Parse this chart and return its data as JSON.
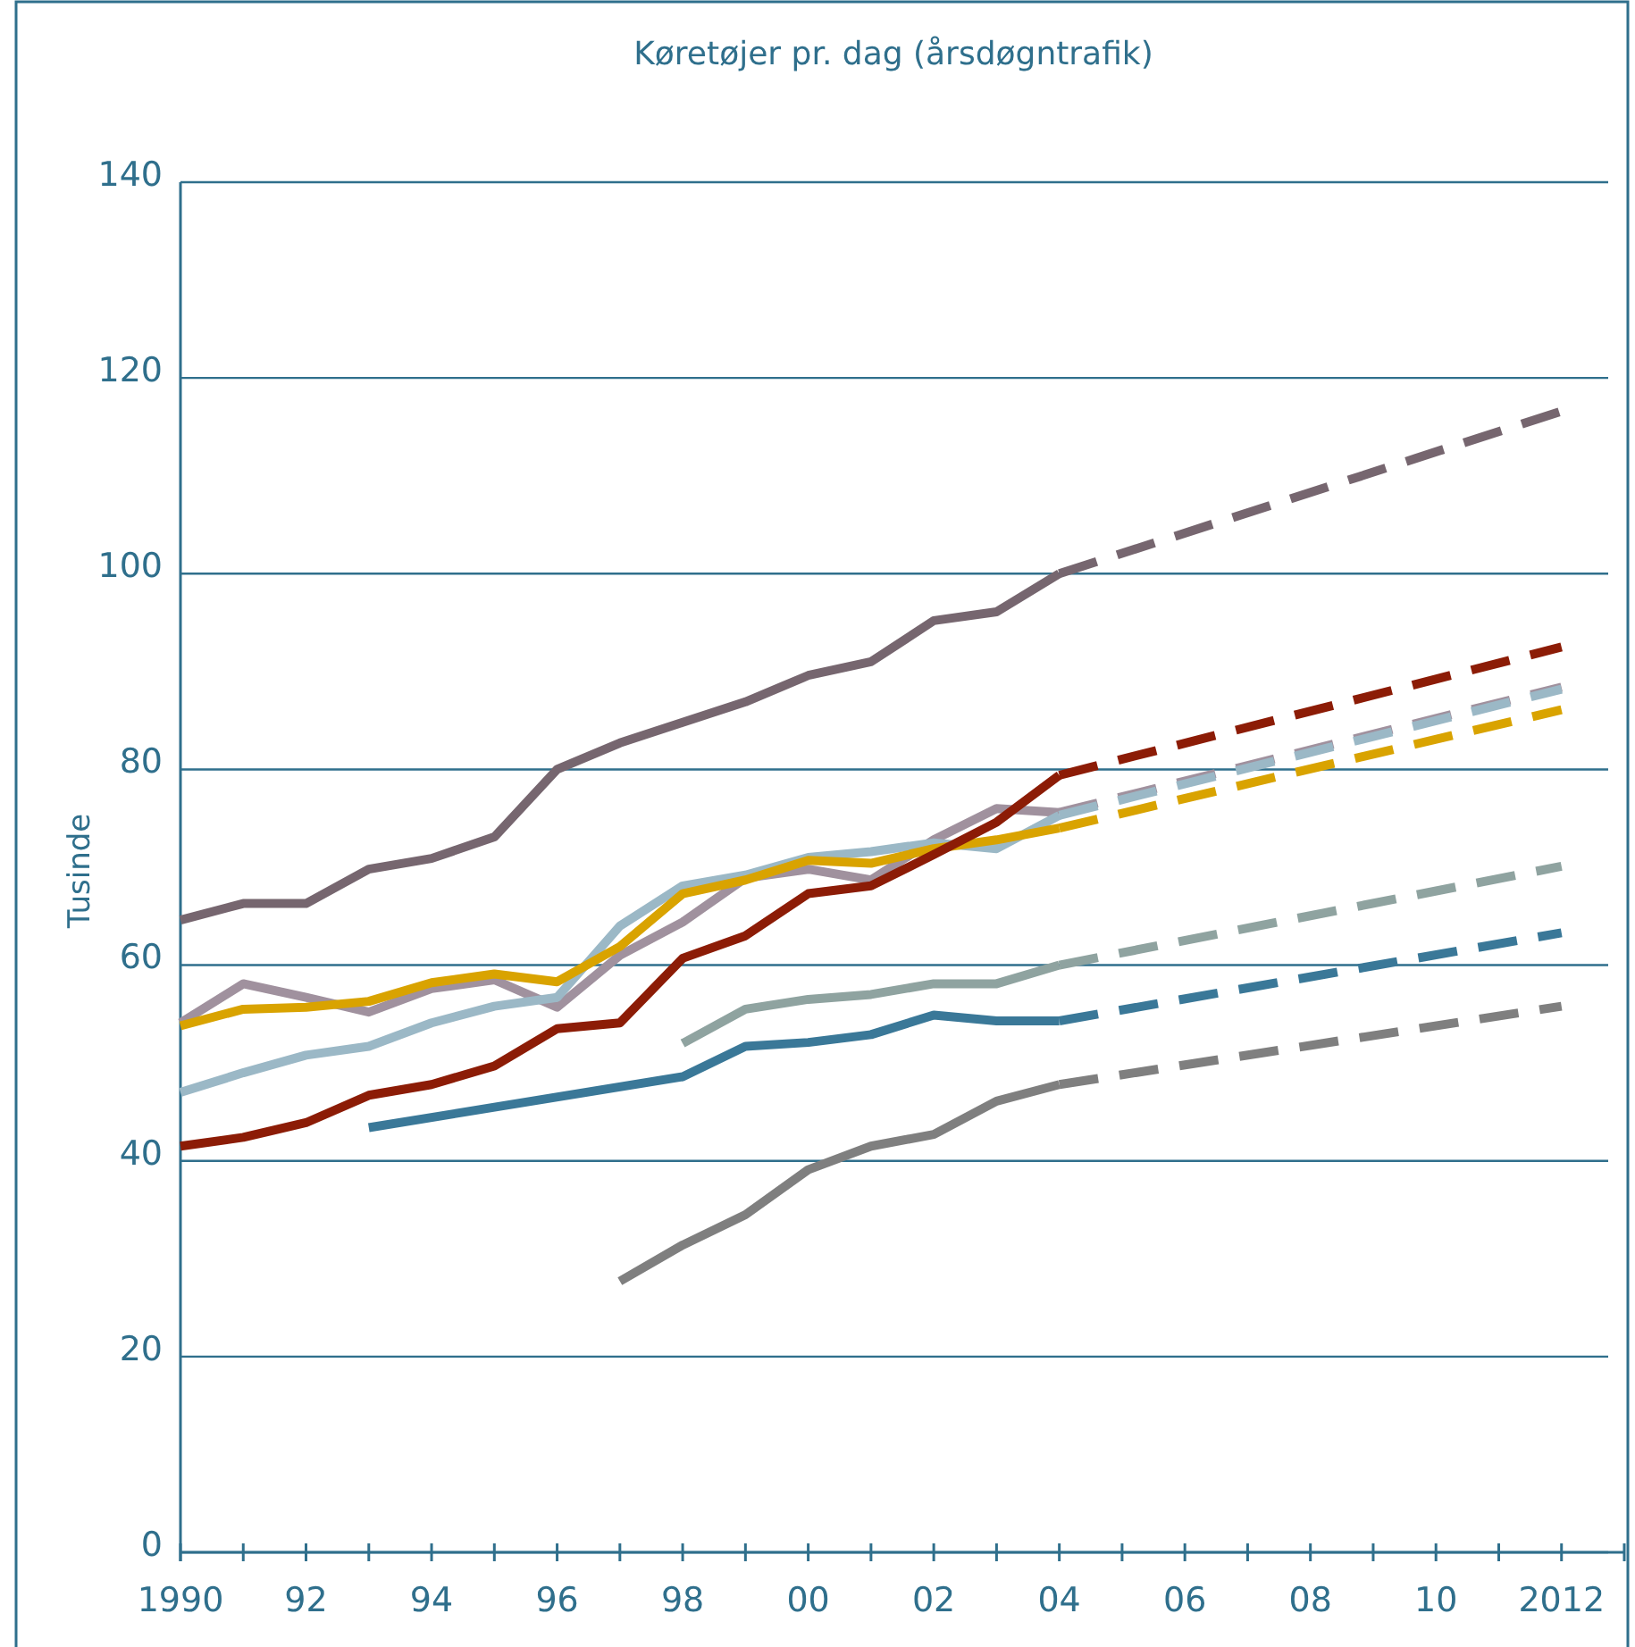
{
  "chart_data": {
    "type": "line",
    "title": "Køretøjer pr. dag (årsdøgntrafik)",
    "ylabel": "Tusinde",
    "xlim": [
      1990,
      2013
    ],
    "ylim": [
      0,
      140
    ],
    "yticks": [
      0,
      20,
      40,
      60,
      80,
      100,
      120,
      140
    ],
    "xticks": [
      {
        "value": 1990,
        "label": "1990"
      },
      {
        "value": 1991,
        "label": null
      },
      {
        "value": 1992,
        "label": "92"
      },
      {
        "value": 1993,
        "label": null
      },
      {
        "value": 1994,
        "label": "94"
      },
      {
        "value": 1995,
        "label": null
      },
      {
        "value": 1996,
        "label": "96"
      },
      {
        "value": 1997,
        "label": null
      },
      {
        "value": 1998,
        "label": "98"
      },
      {
        "value": 1999,
        "label": null
      },
      {
        "value": 2000,
        "label": "00"
      },
      {
        "value": 2001,
        "label": null
      },
      {
        "value": 2002,
        "label": "02"
      },
      {
        "value": 2003,
        "label": null
      },
      {
        "value": 2004,
        "label": "04"
      },
      {
        "value": 2005,
        "label": null
      },
      {
        "value": 2006,
        "label": "06"
      },
      {
        "value": 2007,
        "label": null
      },
      {
        "value": 2008,
        "label": "08"
      },
      {
        "value": 2009,
        "label": null
      },
      {
        "value": 2010,
        "label": "10"
      },
      {
        "value": 2011,
        "label": null
      },
      {
        "value": 2012,
        "label": "2012"
      },
      {
        "value": 2013,
        "label": null
      }
    ],
    "grid": "y",
    "series": [
      {
        "color": "#76666f",
        "line_style": "solid",
        "x": [
          1990,
          1991,
          1992,
          1993,
          1994,
          1995,
          1996,
          1997,
          1998,
          1999,
          2000,
          2001,
          2002,
          2003,
          2004
        ],
        "values": [
          64.6,
          66.3,
          66.3,
          69.8,
          70.9,
          73.1,
          80.0,
          82.7,
          84.8,
          86.9,
          89.6,
          91.0,
          95.2,
          96.1,
          100.0
        ]
      },
      {
        "color": "#76666f",
        "line_style": "dashed",
        "x": [
          2004,
          2012
        ],
        "values": [
          100.0,
          116.6
        ]
      },
      {
        "color": "#a0919e",
        "line_style": "solid",
        "x": [
          1990,
          1991,
          1992,
          1993,
          1994,
          1995,
          1996,
          1997,
          1998,
          1999,
          2000,
          2001,
          2002,
          2003,
          2004
        ],
        "values": [
          54.1,
          58.1,
          56.7,
          55.2,
          57.6,
          58.5,
          55.7,
          61.0,
          64.4,
          68.9,
          69.8,
          68.7,
          72.8,
          76.0,
          75.6
        ]
      },
      {
        "color": "#a0919e",
        "line_style": "dashed",
        "x": [
          2004,
          2012
        ],
        "values": [
          75.6,
          88.4
        ]
      },
      {
        "color": "#9bb8c6",
        "line_style": "solid",
        "x": [
          1990,
          1991,
          1992,
          1993,
          1994,
          1995,
          1996,
          1997,
          1998,
          1999,
          2000,
          2001,
          2002,
          2003,
          2004
        ],
        "values": [
          47.0,
          49.0,
          50.8,
          51.7,
          54.1,
          55.8,
          56.7,
          64.0,
          68.1,
          69.2,
          71.0,
          71.6,
          72.5,
          71.9,
          75.3
        ]
      },
      {
        "color": "#9bb8c6",
        "line_style": "dashed",
        "x": [
          2004,
          2012
        ],
        "values": [
          75.3,
          88.2
        ]
      },
      {
        "color": "#d9a300",
        "line_style": "solid",
        "x": [
          1990,
          1991,
          1992,
          1993,
          1994,
          1995,
          1996,
          1997,
          1998,
          1999,
          2000,
          2001,
          2002,
          2003,
          2004
        ],
        "values": [
          53.8,
          55.5,
          55.7,
          56.3,
          58.2,
          59.1,
          58.3,
          61.9,
          67.3,
          68.7,
          70.7,
          70.4,
          71.9,
          72.8,
          74.0
        ]
      },
      {
        "color": "#d9a300",
        "line_style": "dashed",
        "x": [
          2004,
          2012
        ],
        "values": [
          74.0,
          86.1
        ]
      },
      {
        "color": "#8c1c06",
        "line_style": "solid",
        "x": [
          1990,
          1991,
          1992,
          1993,
          1994,
          1995,
          1996,
          1997,
          1998,
          1999,
          2000,
          2001,
          2002,
          2003,
          2004
        ],
        "values": [
          41.5,
          42.4,
          43.9,
          46.7,
          47.8,
          49.7,
          53.5,
          54.1,
          60.7,
          63.0,
          67.3,
          68.1,
          71.3,
          74.6,
          79.4
        ]
      },
      {
        "color": "#8c1c06",
        "line_style": "dashed",
        "x": [
          2004,
          2012
        ],
        "values": [
          79.4,
          92.5
        ]
      },
      {
        "color": "#8fa3a0",
        "line_style": "solid",
        "x": [
          1998,
          1999,
          2000,
          2001,
          2002,
          2003,
          2004
        ],
        "values": [
          52.0,
          55.5,
          56.5,
          57.0,
          58.1,
          58.1,
          60.0
        ]
      },
      {
        "color": "#8fa3a0",
        "line_style": "dashed",
        "x": [
          2004,
          2012
        ],
        "values": [
          60.0,
          70.1
        ]
      },
      {
        "color": "#3a7898",
        "line_style": "solid",
        "x": [
          1993,
          1998,
          1999,
          2000,
          2001,
          2002,
          2003,
          2004
        ],
        "values": [
          43.4,
          48.6,
          51.7,
          52.1,
          52.9,
          54.9,
          54.3,
          54.3
        ]
      },
      {
        "color": "#3a7898",
        "line_style": "dashed",
        "x": [
          2004,
          2012
        ],
        "values": [
          54.3,
          63.3
        ]
      },
      {
        "color": "#7f7f7f",
        "line_style": "solid",
        "x": [
          1997,
          1998,
          1999,
          2000,
          2001,
          2002,
          2003,
          2004
        ],
        "values": [
          27.7,
          31.4,
          34.5,
          39.1,
          41.5,
          42.7,
          46.1,
          47.8
        ]
      },
      {
        "color": "#7f7f7f",
        "line_style": "dashed",
        "x": [
          2004,
          2012
        ],
        "values": [
          47.8,
          55.8
        ]
      }
    ]
  }
}
